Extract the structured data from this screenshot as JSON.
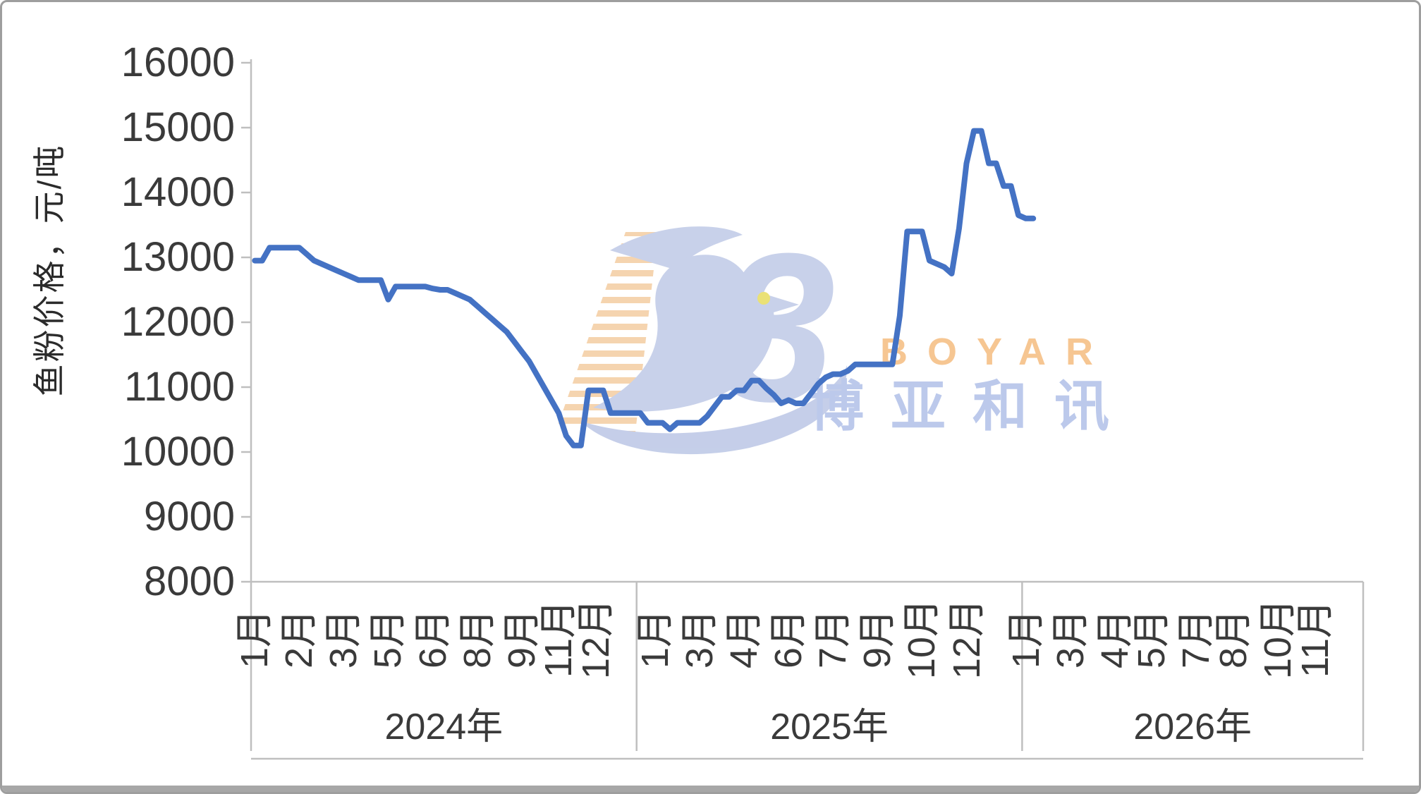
{
  "watermark": {
    "brand": "BOYAR",
    "brand_cn": "博亚和讯",
    "brand_color": "#f6c38d",
    "brand_cn_color": "#b9c7ea",
    "bird_color": "#c6cfe9",
    "base_color": "#c2cce8",
    "stripe_color": "#f5d2ab",
    "eye_color": "#e9e06f",
    "b3_glyph": "3"
  },
  "chart_data": {
    "type": "line",
    "granularity": "weekly",
    "title": "",
    "line_color": "#4472c4",
    "axis_color": "#bfbfbf",
    "text_color": "#3a3a3a",
    "legend": "none",
    "grid": "off",
    "y_axis": {
      "title": "鱼粉价格，元/吨",
      "min": 8000,
      "max": 16000,
      "tick_step": 1000,
      "ticks": [
        16000,
        15000,
        14000,
        13000,
        12000,
        11000,
        10000,
        9000,
        8000
      ]
    },
    "x_axis": {
      "total_weeks": 150,
      "years": [
        {
          "label": "2024年",
          "weeks_in_band": 52,
          "month_labels": [
            {
              "label": "1月",
              "week": 0
            },
            {
              "label": "2月",
              "week": 6
            },
            {
              "label": "3月",
              "week": 12
            },
            {
              "label": "5月",
              "week": 18
            },
            {
              "label": "6月",
              "week": 24
            },
            {
              "label": "8月",
              "week": 30
            },
            {
              "label": "9月",
              "week": 36
            },
            {
              "label": "11月",
              "week": 41
            },
            {
              "label": "12月",
              "week": 46
            }
          ],
          "weekly_values": [
            12950,
            12950,
            13150,
            13150,
            13150,
            13150,
            13150,
            13050,
            12950,
            12900,
            12850,
            12800,
            12750,
            12700,
            12650,
            12650,
            12650,
            12650,
            12350,
            12550,
            12550,
            12550,
            12550,
            12550,
            12520,
            12500,
            12500,
            12450,
            12400,
            12350,
            12250,
            12150,
            12050,
            11950,
            11850,
            11700,
            11550,
            11400,
            11200,
            11000,
            10800,
            10600,
            10250,
            10100,
            10100,
            10950,
            10950,
            10950,
            10600,
            10600,
            10600,
            10600
          ]
        },
        {
          "label": "2025年",
          "weeks_in_band": 52,
          "month_labels": [
            {
              "label": "1月",
              "week": 54
            },
            {
              "label": "3月",
              "week": 60
            },
            {
              "label": "4月",
              "week": 66
            },
            {
              "label": "6月",
              "week": 72
            },
            {
              "label": "7月",
              "week": 78
            },
            {
              "label": "9月",
              "week": 84
            },
            {
              "label": "10月",
              "week": 90
            },
            {
              "label": "12月",
              "week": 96
            }
          ],
          "weekly_values": [
            10600,
            10450,
            10450,
            10450,
            10350,
            10450,
            10450,
            10450,
            10450,
            10550,
            10700,
            10850,
            10850,
            10950,
            10950,
            11100,
            11100,
            10980,
            10880,
            10750,
            10800,
            10750,
            10750,
            10900,
            11050,
            11150,
            11200,
            11200,
            11250,
            11350,
            11350,
            11350,
            11350,
            11350,
            11350,
            12100,
            13400,
            13400,
            13400,
            12950,
            12900,
            12850,
            12750,
            13450,
            14450,
            14950,
            14950,
            14450,
            14450,
            14100,
            14100,
            13650
          ]
        },
        {
          "label": "2026年",
          "weeks_in_band": 46,
          "month_labels": [
            {
              "label": "1月",
              "week": 104
            },
            {
              "label": "3月",
              "week": 110
            },
            {
              "label": "4月",
              "week": 116
            },
            {
              "label": "5月",
              "week": 121
            },
            {
              "label": "7月",
              "week": 127
            },
            {
              "label": "8月",
              "week": 132
            },
            {
              "label": "10月",
              "week": 138
            },
            {
              "label": "11月",
              "week": 143
            }
          ],
          "weekly_values": [
            13600,
            13600
          ]
        }
      ]
    }
  }
}
